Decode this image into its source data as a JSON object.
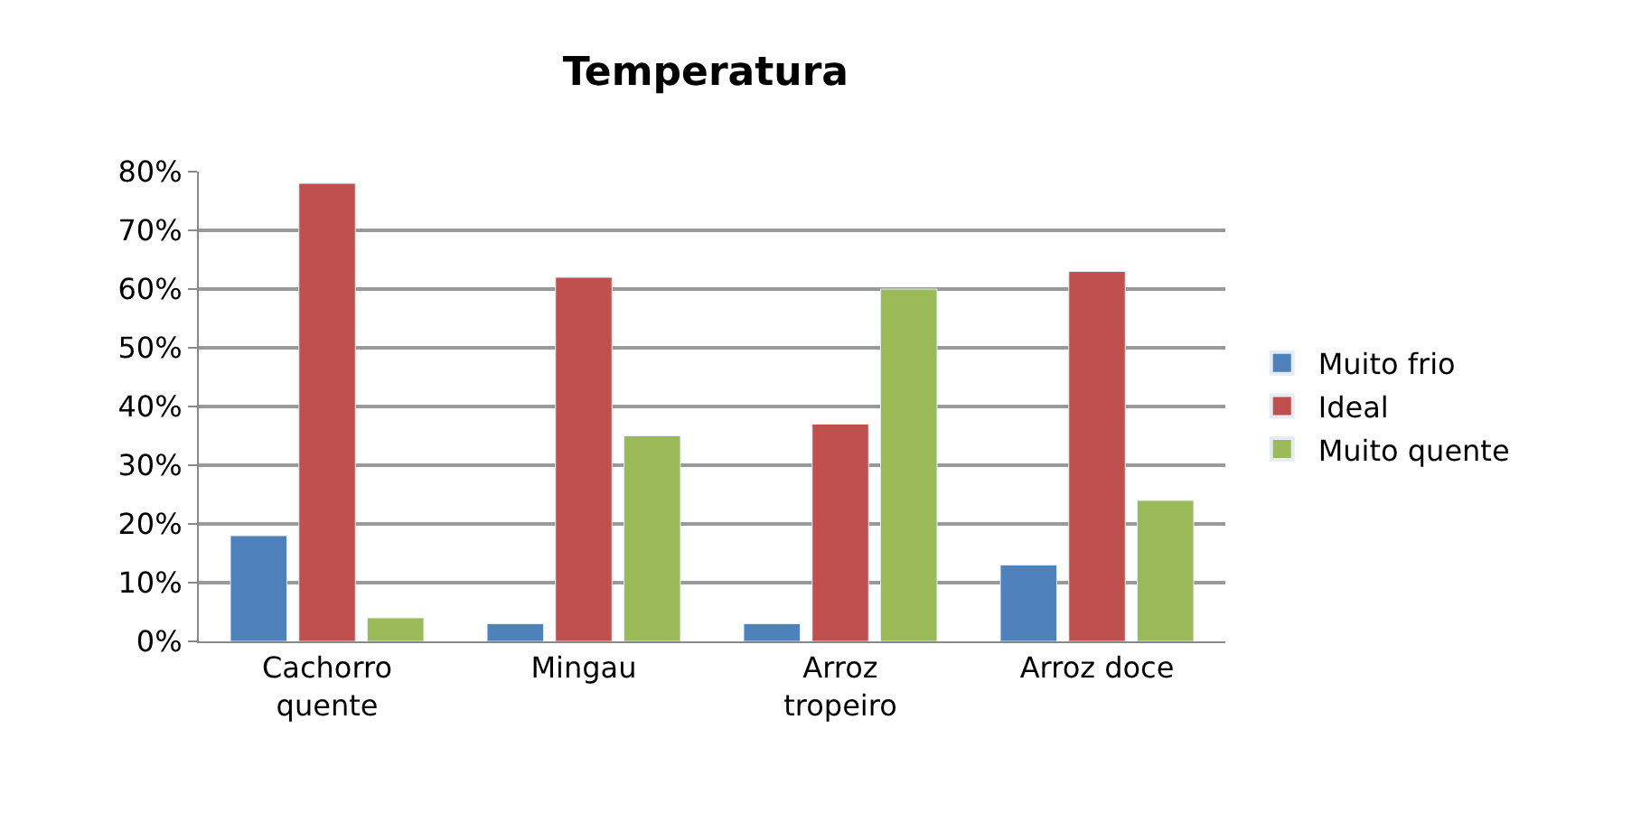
{
  "chart_data": {
    "type": "bar",
    "title": "Temperatura",
    "categories": [
      "Cachorro quente",
      "Mingau",
      "Arroz tropeiro",
      "Arroz doce"
    ],
    "series": [
      {
        "name": "Muito frio",
        "color": "#4f81bd",
        "values": [
          18,
          3,
          3,
          13
        ]
      },
      {
        "name": "Ideal",
        "color": "#c0504d",
        "values": [
          78,
          62,
          37,
          63
        ]
      },
      {
        "name": "Muito quente",
        "color": "#9bbb59",
        "values": [
          4,
          35,
          60,
          24
        ]
      }
    ],
    "ylim": [
      0,
      80
    ],
    "yticks": [
      {
        "value": 0,
        "label": "0%"
      },
      {
        "value": 10,
        "label": "10%"
      },
      {
        "value": 20,
        "label": "20%"
      },
      {
        "value": 30,
        "label": "30%"
      },
      {
        "value": 40,
        "label": "40%"
      },
      {
        "value": 50,
        "label": "50%"
      },
      {
        "value": 60,
        "label": "60%"
      },
      {
        "value": 70,
        "label": "70%"
      },
      {
        "value": 80,
        "label": "80%"
      }
    ],
    "grid": "y",
    "legend": "right"
  }
}
